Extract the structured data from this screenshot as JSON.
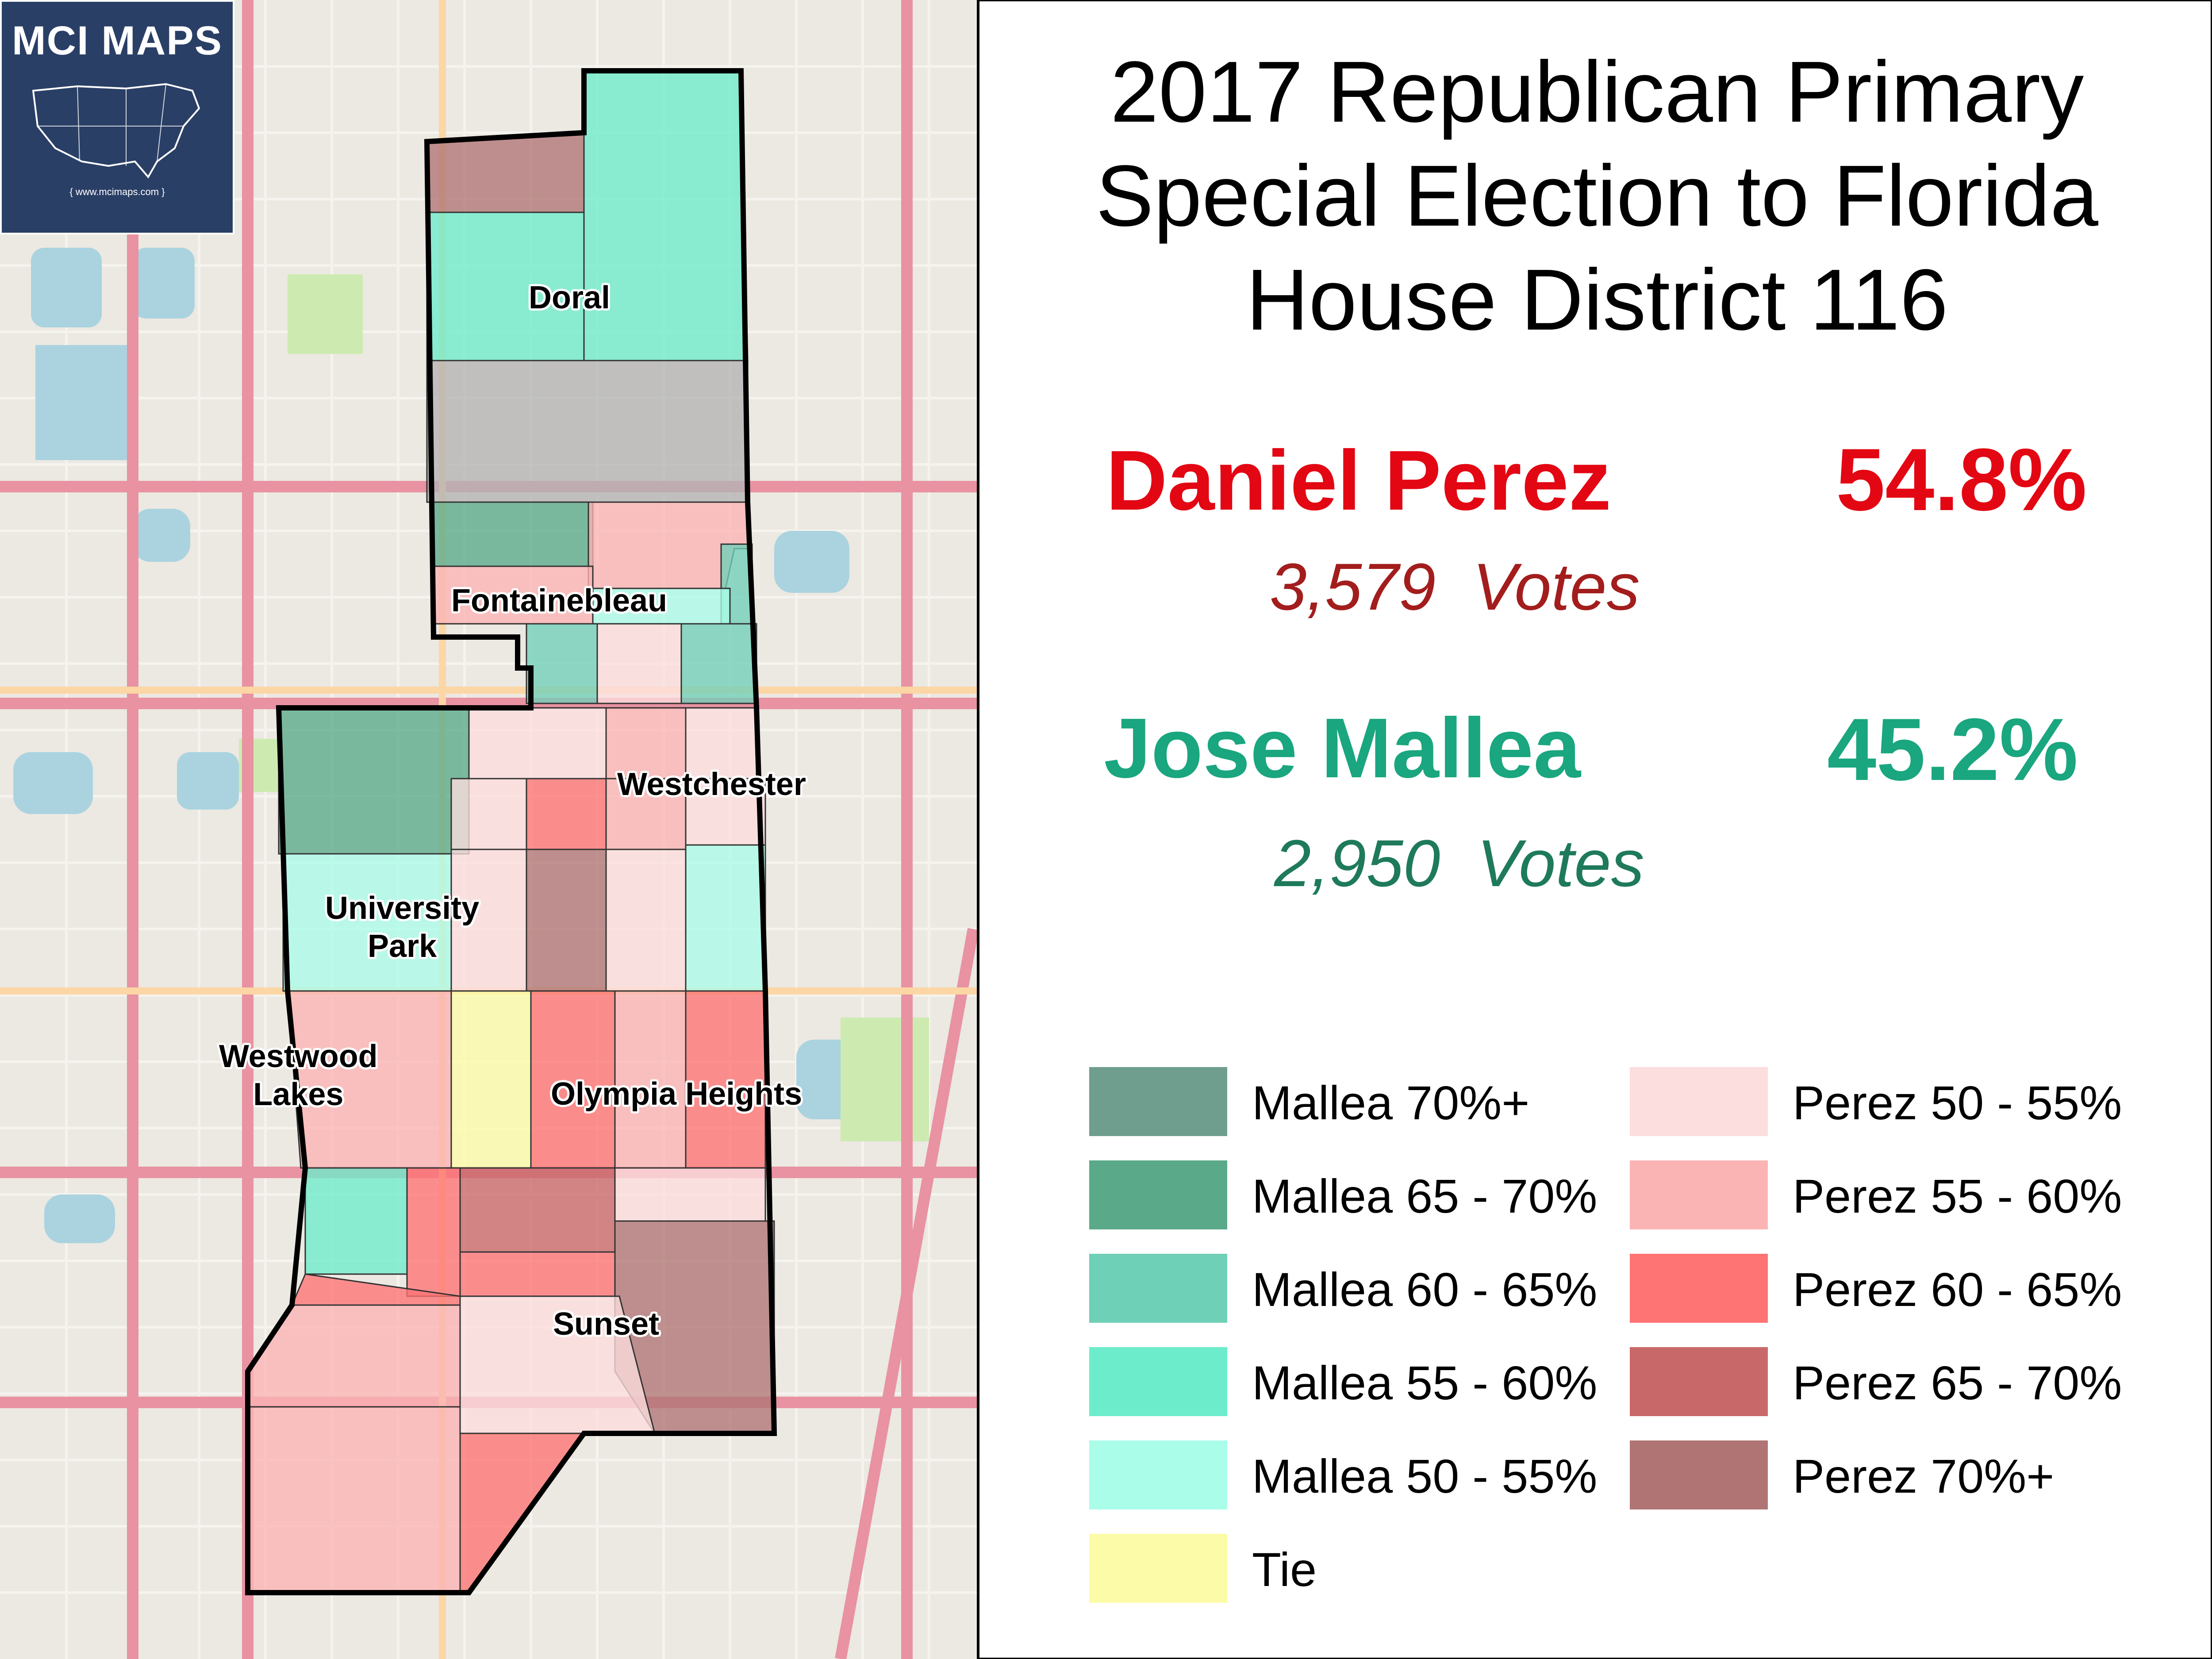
{
  "badge": {
    "title": "MCI MAPS",
    "url": "{ www.mcimaps.com }"
  },
  "title_lines": [
    "2017 Republican Primary",
    "Special Election to Florida",
    "House District 116"
  ],
  "candidates": [
    {
      "name": "Daniel Perez",
      "pct": "54.8%",
      "votes": "3,579  Votes",
      "color": "#e30613",
      "votes_color": "#a31d1d"
    },
    {
      "name": "Jose Mallea",
      "pct": "45.2%",
      "votes": "2,950  Votes",
      "color": "#1aa67f",
      "votes_color": "#1e7a5a"
    }
  ],
  "map_labels": {
    "doral": "Doral",
    "fontainebleau": "Fontainebleau",
    "westchester": "Westchester",
    "university_park": [
      "University",
      "Park"
    ],
    "westwood_lakes": [
      "Westwood",
      "Lakes"
    ],
    "olympia_heights": "Olympia Heights",
    "sunset": "Sunset"
  },
  "legend": [
    {
      "label": "Mallea 70%+",
      "color": "#6f9e8e"
    },
    {
      "label": "Mallea 65 - 70%",
      "color": "#5aaa8a"
    },
    {
      "label": "Mallea 60 - 65%",
      "color": "#6fd0b8"
    },
    {
      "label": "Mallea 55 - 60%",
      "color": "#6deccb"
    },
    {
      "label": "Mallea 50 - 55%",
      "color": "#aafde9"
    },
    {
      "label": "Tie",
      "color": "#fcfca8"
    },
    {
      "label": "Perez 50 - 55%",
      "color": "#fcdede"
    },
    {
      "label": "Perez 55 - 60%",
      "color": "#fbb4b4"
    },
    {
      "label": "Perez 60 - 65%",
      "color": "#fe7373"
    },
    {
      "label": "Perez 65 - 70%",
      "color": "#c96868"
    },
    {
      "label": "Perez 70%+",
      "color": "#b07474"
    }
  ]
}
